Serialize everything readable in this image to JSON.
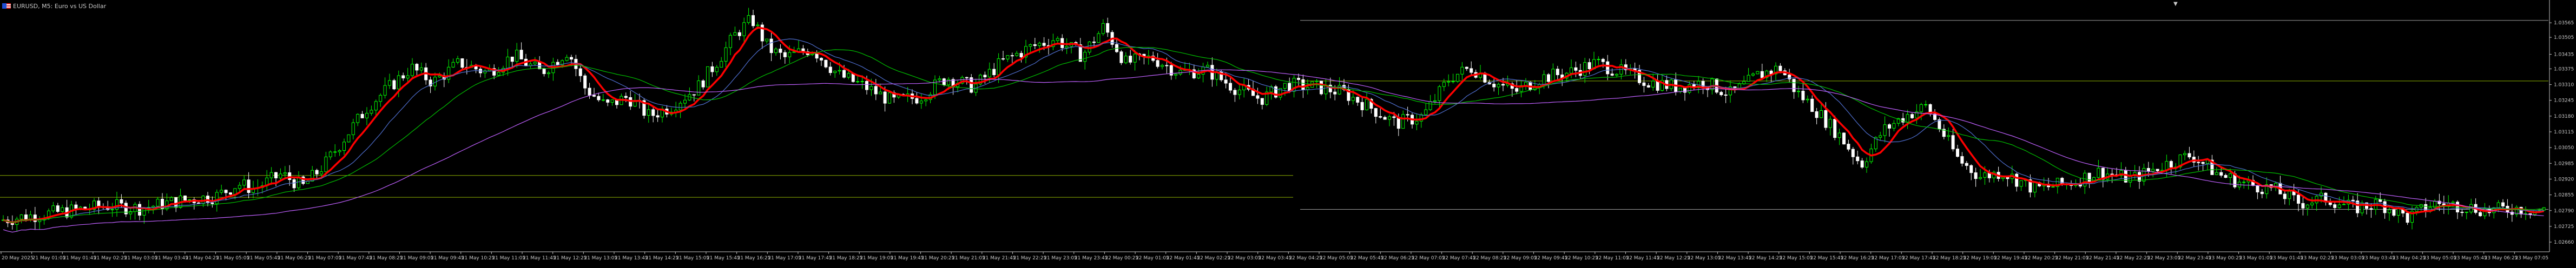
{
  "window": {
    "title": "EURUSD, M5:  Euro vs US Dollar",
    "marker": "▼"
  },
  "colors": {
    "background": "#000000",
    "bull_candle": "#00ff00",
    "bear_candle": "#ffffff",
    "ma_fast": "#ff0000",
    "ma_mid": "#00c000",
    "ma_slow": "#4f6fd0",
    "ma_long": "#c060ff",
    "axis": "#c8c8c8",
    "hline_green": "#8db000",
    "hline_grey": "#a0a0a0"
  },
  "chart_data": {
    "type": "candlestick",
    "symbol": "EURUSD",
    "timeframe": "M5",
    "ylim": [
      1.0262,
      1.0361
    ],
    "price_ticks": [
      "1.03565",
      "1.03505",
      "1.03435",
      "1.03375",
      "1.03310",
      "1.03245",
      "1.03180",
      "1.03115",
      "1.03050",
      "1.02985",
      "1.02920",
      "1.02855",
      "1.02790",
      "1.02725",
      "1.02660"
    ],
    "time_ticks": [
      "20 May 2025",
      "21 May 01:05",
      "21 May 01:45",
      "21 May 02:25",
      "21 May 03:05",
      "21 May 03:45",
      "21 May 04:25",
      "21 May 05:05",
      "21 May 05:45",
      "21 May 06:25",
      "21 May 07:05",
      "21 May 07:45",
      "21 May 08:25",
      "21 May 09:05",
      "21 May 09:45",
      "21 May 10:25",
      "21 May 11:05",
      "21 May 11:45",
      "21 May 12:25",
      "21 May 13:05",
      "21 May 13:45",
      "21 May 14:25",
      "21 May 15:05",
      "21 May 15:45",
      "21 May 16:25",
      "21 May 17:05",
      "21 May 17:45",
      "21 May 18:25",
      "21 May 19:05",
      "21 May 19:45",
      "21 May 20:25",
      "21 May 21:05",
      "21 May 21:45",
      "21 May 22:25",
      "21 May 23:05",
      "21 May 23:45",
      "22 May 00:25",
      "22 May 01:05",
      "22 May 01:45",
      "22 May 02:25",
      "22 May 03:05",
      "22 May 03:45",
      "22 May 04:25",
      "22 May 05:05",
      "22 May 05:45",
      "22 May 06:25",
      "22 May 07:05",
      "22 May 07:45",
      "22 May 08:25",
      "22 May 09:05",
      "22 May 09:45",
      "22 May 10:25",
      "22 May 11:05",
      "22 May 11:45",
      "22 May 12:25",
      "22 May 13:05",
      "22 May 13:45",
      "22 May 14:25",
      "22 May 15:05",
      "22 May 15:45",
      "22 May 16:25",
      "22 May 17:05",
      "22 May 17:45",
      "22 May 18:25",
      "22 May 19:05",
      "22 May 19:45",
      "22 May 20:25",
      "22 May 21:05",
      "22 May 21:45",
      "22 May 22:25",
      "22 May 23:05",
      "22 May 23:45",
      "23 May 00:25",
      "23 May 01:05",
      "23 May 01:45",
      "23 May 02:25",
      "23 May 03:05",
      "23 May 03:45",
      "23 May 04:25",
      "23 May 05:05",
      "23 May 05:45",
      "23 May 06:25",
      "23 May 07:05"
    ],
    "price_path_keypoints": [
      [
        0,
        1.0275
      ],
      [
        60,
        1.0277
      ],
      [
        130,
        1.0279
      ],
      [
        200,
        1.0281
      ],
      [
        260,
        1.028
      ],
      [
        330,
        1.0283
      ],
      [
        400,
        1.0285
      ],
      [
        440,
        1.029
      ],
      [
        470,
        1.0288
      ],
      [
        520,
        1.0294
      ],
      [
        560,
        1.0289
      ],
      [
        600,
        1.0298
      ],
      [
        640,
        1.031
      ],
      [
        680,
        1.0322
      ],
      [
        720,
        1.033
      ],
      [
        760,
        1.0338
      ],
      [
        800,
        1.0332
      ],
      [
        850,
        1.034
      ],
      [
        900,
        1.0336
      ],
      [
        950,
        1.0343
      ],
      [
        1000,
        1.0336
      ],
      [
        1050,
        1.0345
      ],
      [
        1080,
        1.033
      ],
      [
        1120,
        1.0322
      ],
      [
        1160,
        1.0326
      ],
      [
        1200,
        1.0318
      ],
      [
        1240,
        1.0322
      ],
      [
        1290,
        1.033
      ],
      [
        1330,
        1.0342
      ],
      [
        1360,
        1.0352
      ],
      [
        1390,
        1.0358
      ],
      [
        1420,
        1.0346
      ],
      [
        1450,
        1.0342
      ],
      [
        1500,
        1.0346
      ],
      [
        1550,
        1.0335
      ],
      [
        1600,
        1.033
      ],
      [
        1650,
        1.0324
      ],
      [
        1700,
        1.0326
      ],
      [
        1750,
        1.0334
      ],
      [
        1800,
        1.033
      ],
      [
        1850,
        1.034
      ],
      [
        1900,
        1.0346
      ],
      [
        1950,
        1.035
      ],
      [
        2000,
        1.0343
      ],
      [
        2040,
        1.0355
      ],
      [
        2080,
        1.034
      ],
      [
        2130,
        1.0342
      ],
      [
        2180,
        1.0336
      ],
      [
        2230,
        1.0337
      ],
      [
        2280,
        1.033
      ],
      [
        2330,
        1.0325
      ],
      [
        2380,
        1.0331
      ],
      [
        2430,
        1.033
      ],
      [
        2480,
        1.0328
      ],
      [
        2530,
        1.0322
      ],
      [
        2580,
        1.0315
      ],
      [
        2630,
        1.0318
      ],
      [
        2680,
        1.0334
      ],
      [
        2720,
        1.0338
      ],
      [
        2760,
        1.0332
      ],
      [
        2800,
        1.0328
      ],
      [
        2850,
        1.0334
      ],
      [
        2900,
        1.0336
      ],
      [
        2950,
        1.034
      ],
      [
        3000,
        1.0336
      ],
      [
        3050,
        1.0332
      ],
      [
        3100,
        1.033
      ],
      [
        3150,
        1.0332
      ],
      [
        3200,
        1.0327
      ],
      [
        3250,
        1.0335
      ],
      [
        3290,
        1.0338
      ],
      [
        3320,
        1.0328
      ],
      [
        3350,
        1.0322
      ],
      [
        3400,
        1.031
      ],
      [
        3440,
        1.0298
      ],
      [
        3480,
        1.0312
      ],
      [
        3520,
        1.0318
      ],
      [
        3560,
        1.0322
      ],
      [
        3580,
        1.0315
      ],
      [
        3620,
        1.03
      ],
      [
        3660,
        1.0293
      ],
      [
        3700,
        1.0295
      ],
      [
        3760,
        1.0288
      ],
      [
        3820,
        1.029
      ],
      [
        3880,
        1.0295
      ],
      [
        3940,
        1.0292
      ],
      [
        4000,
        1.0298
      ],
      [
        4050,
        1.0302
      ],
      [
        4100,
        1.0294
      ],
      [
        4150,
        1.029
      ],
      [
        4200,
        1.0288
      ],
      [
        4250,
        1.0282
      ],
      [
        4300,
        1.0284
      ],
      [
        4350,
        1.028
      ],
      [
        4400,
        1.0282
      ],
      [
        4450,
        1.0276
      ],
      [
        4500,
        1.0282
      ],
      [
        4550,
        1.0281
      ],
      [
        4600,
        1.0279
      ],
      [
        4650,
        1.028
      ],
      [
        4700,
        1.0279
      ],
      [
        4740,
        1.0278
      ]
    ],
    "moving_averages": [
      {
        "color_key": "ma_fast",
        "smooth": 6
      },
      {
        "color_key": "ma_slow",
        "smooth": 14
      },
      {
        "color_key": "ma_mid",
        "smooth": 28
      },
      {
        "color_key": "ma_long",
        "smooth": 60
      }
    ],
    "horizontal_lines": [
      {
        "price": 1.03325,
        "x_start": 2403,
        "x_end": 4710,
        "color_key": "hline_green"
      },
      {
        "price": 1.02795,
        "x_start": 2403,
        "x_end": 4710,
        "color_key": "hline_grey"
      },
      {
        "price": 1.02935,
        "x_start": 0,
        "x_end": 2390,
        "color_key": "hline_green"
      },
      {
        "price": 1.02845,
        "x_start": 0,
        "x_end": 2390,
        "color_key": "hline_green"
      },
      {
        "price": 1.03575,
        "x_start": 2403,
        "x_end": 4710,
        "color_key": "hline_grey"
      }
    ],
    "grid": false
  }
}
